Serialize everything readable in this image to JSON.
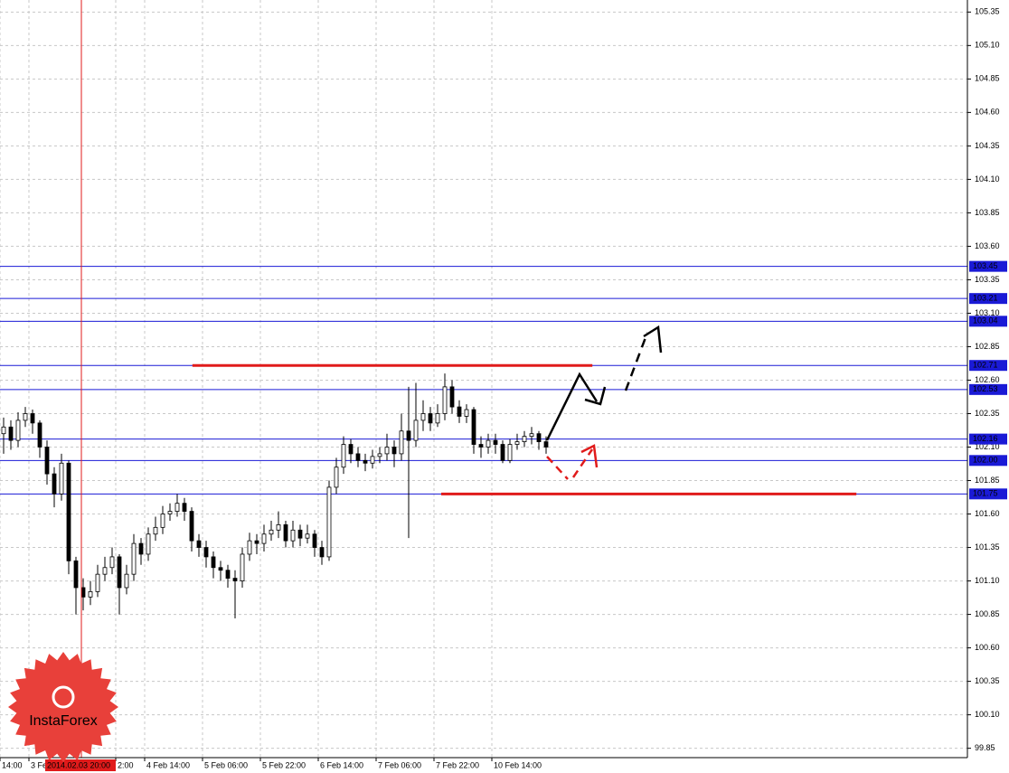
{
  "chart_data": {
    "type": "candlestick",
    "open": [
      102.2,
      102.25,
      102.15,
      102.3,
      102.35,
      102.28,
      102.1,
      101.9,
      101.75,
      101.98,
      101.25,
      101.05,
      100.98,
      101.02,
      101.15,
      101.2,
      101.28,
      101.05,
      101.15,
      101.38,
      101.3,
      101.45,
      101.5,
      101.6,
      101.62,
      101.68,
      101.62,
      101.4,
      101.35,
      101.28,
      101.2,
      101.18,
      101.12,
      101.1,
      101.3,
      101.4,
      101.38,
      101.45,
      101.48,
      101.52,
      101.4,
      101.48,
      101.42,
      101.45,
      101.35,
      101.28,
      101.8,
      101.95,
      102.12,
      102.05,
      102.0,
      101.98,
      102.03,
      102.05,
      102.1,
      102.05,
      102.22,
      102.15,
      102.3,
      102.35,
      102.28,
      102.35,
      102.55,
      102.4,
      102.33,
      102.38,
      102.12,
      102.1,
      102.15,
      102.12,
      102.0,
      102.12,
      102.14,
      102.18,
      102.2,
      102.14
    ],
    "high": [
      102.32,
      102.3,
      102.36,
      102.4,
      102.38,
      102.3,
      102.15,
      101.95,
      102.05,
      102.0,
      101.28,
      101.12,
      101.1,
      101.22,
      101.28,
      101.35,
      101.3,
      101.22,
      101.45,
      101.42,
      101.5,
      101.58,
      101.66,
      101.68,
      101.75,
      101.72,
      101.65,
      101.45,
      101.4,
      101.32,
      101.25,
      101.22,
      101.18,
      101.35,
      101.46,
      101.45,
      101.52,
      101.55,
      101.62,
      101.55,
      101.55,
      101.52,
      101.52,
      101.48,
      101.4,
      101.85,
      102.02,
      102.18,
      102.16,
      102.1,
      102.05,
      102.08,
      102.1,
      102.2,
      102.15,
      102.35,
      102.55,
      102.58,
      102.45,
      102.4,
      102.42,
      102.65,
      102.6,
      102.45,
      102.42,
      102.4,
      102.18,
      102.2,
      102.2,
      102.15,
      102.16,
      102.2,
      102.22,
      102.25,
      102.22,
      102.18
    ],
    "low": [
      102.05,
      102.08,
      102.1,
      102.25,
      102.2,
      102.02,
      101.82,
      101.65,
      101.7,
      101.15,
      100.85,
      100.88,
      100.92,
      100.98,
      101.1,
      101.15,
      100.85,
      101.0,
      101.1,
      101.22,
      101.25,
      101.4,
      101.45,
      101.55,
      101.58,
      101.55,
      101.32,
      101.28,
      101.2,
      101.12,
      101.1,
      101.05,
      100.82,
      101.05,
      101.25,
      101.3,
      101.32,
      101.4,
      101.42,
      101.35,
      101.35,
      101.36,
      101.38,
      101.28,
      101.22,
      101.25,
      101.75,
      101.9,
      101.98,
      101.95,
      101.92,
      101.94,
      101.98,
      102.0,
      101.95,
      102.0,
      101.42,
      102.1,
      102.22,
      102.22,
      102.25,
      102.3,
      102.35,
      102.28,
      102.28,
      102.05,
      102.02,
      102.05,
      102.05,
      101.98,
      101.98,
      102.08,
      102.1,
      102.12,
      102.08,
      102.05
    ],
    "close": [
      102.25,
      102.15,
      102.3,
      102.35,
      102.28,
      102.1,
      101.9,
      101.75,
      101.98,
      101.25,
      101.05,
      100.98,
      101.02,
      101.15,
      101.2,
      101.28,
      101.05,
      101.15,
      101.38,
      101.3,
      101.45,
      101.5,
      101.6,
      101.62,
      101.68,
      101.62,
      101.4,
      101.35,
      101.28,
      101.2,
      101.18,
      101.12,
      101.1,
      101.3,
      101.4,
      101.38,
      101.45,
      101.48,
      101.52,
      101.4,
      101.48,
      101.42,
      101.45,
      101.35,
      101.28,
      101.8,
      101.95,
      102.12,
      102.05,
      102.0,
      101.98,
      102.03,
      102.05,
      102.1,
      102.05,
      102.22,
      102.15,
      102.3,
      102.35,
      102.28,
      102.35,
      102.55,
      102.4,
      102.33,
      102.38,
      102.12,
      102.1,
      102.15,
      102.12,
      102.0,
      102.12,
      102.14,
      102.18,
      102.2,
      102.14,
      102.1
    ],
    "xlim": [
      -0.5,
      133.25
    ],
    "xticks": [
      {
        "value": -0.5,
        "label": "14:00"
      },
      {
        "value": 3.5,
        "label": "3 Fe"
      },
      {
        "value": 15.5,
        "label": "2:00"
      },
      {
        "value": 19.5,
        "label": "4 Feb 14:00"
      },
      {
        "value": 27.5,
        "label": "5 Feb 06:00"
      },
      {
        "value": 35.5,
        "label": "5 Feb 22:00"
      },
      {
        "value": 43.5,
        "label": "6 Feb 14:00"
      },
      {
        "value": 51.5,
        "label": "7 Feb 06:00"
      },
      {
        "value": 59.5,
        "label": "7 Feb 22:00"
      },
      {
        "value": 67.5,
        "label": "10 Feb 14:00"
      }
    ],
    "ylim": [
      99.78,
      105.44
    ],
    "yticks": [
      105.35,
      {
        "value": 105.1,
        "label": "105.10"
      },
      104.85,
      {
        "value": 104.6,
        "label": "104.60"
      },
      104.35,
      {
        "value": 104.1,
        "label": "104.10"
      },
      103.85,
      {
        "value": 103.6,
        "label": "103.60"
      },
      103.35,
      {
        "value": 103.1,
        "label": "103.10"
      },
      102.85,
      {
        "value": 102.6,
        "label": "102.60"
      },
      102.35,
      {
        "value": 102.1,
        "label": "102.10"
      },
      101.85,
      {
        "value": 101.6,
        "label": "101.60"
      },
      101.35,
      {
        "value": 101.1,
        "label": "101.10"
      },
      100.85,
      {
        "value": 100.6,
        "label": "100.60"
      },
      100.35,
      {
        "value": 100.1,
        "label": "100.10"
      },
      99.85
    ],
    "grid": true,
    "levels": [
      103.45,
      103.21,
      103.04,
      102.71,
      102.53,
      102.16,
      {
        "value": 102.0,
        "label": "102.00"
      },
      101.75
    ],
    "level_color": "#1a1ad6",
    "segments": [
      {
        "value": 102.71,
        "from": 26.1,
        "to": 81.4
      },
      {
        "value": 101.75,
        "from": 60.5,
        "to": 117.9
      }
    ],
    "segment_color": "#e01b1b",
    "cursor": {
      "value": 10.75,
      "label": "2014.02.03 20:00"
    },
    "cursor_color": "#e01b1b",
    "watermark": "InstaForex"
  }
}
